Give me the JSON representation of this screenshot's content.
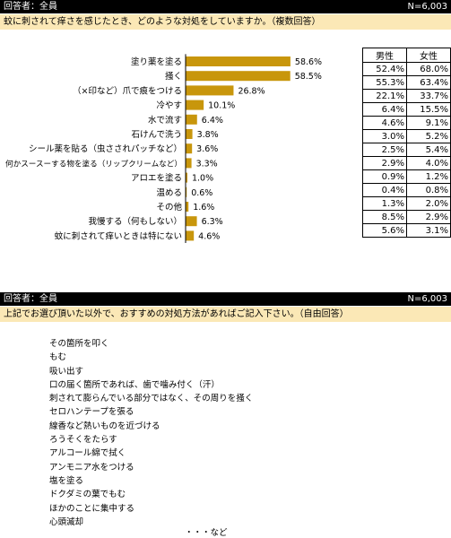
{
  "section1": {
    "respondent": "回答者：全員",
    "n": "N=6,003",
    "question": "蚊に刺されて痒さを感じたとき、どのような対処をしていますか。（複数回答）"
  },
  "table": {
    "headers": [
      "男性",
      "女性"
    ],
    "rows": [
      [
        "52.4%",
        "68.0%"
      ],
      [
        "55.3%",
        "63.4%"
      ],
      [
        "22.1%",
        "33.7%"
      ],
      [
        "6.4%",
        "15.5%"
      ],
      [
        "4.6%",
        "9.1%"
      ],
      [
        "3.0%",
        "5.2%"
      ],
      [
        "2.5%",
        "5.4%"
      ],
      [
        "2.9%",
        "4.0%"
      ],
      [
        "0.9%",
        "1.2%"
      ],
      [
        "0.4%",
        "0.8%"
      ],
      [
        "1.3%",
        "2.0%"
      ],
      [
        "8.5%",
        "2.9%"
      ],
      [
        "5.6%",
        "3.1%"
      ]
    ]
  },
  "chart_data": {
    "type": "bar",
    "orientation": "horizontal",
    "categories": [
      "塗り薬を塗る",
      "掻く",
      "（×印など）爪で痕をつける",
      "冷やす",
      "水で流す",
      "石けんで洗う",
      "シール薬を貼る（虫さされパッチなど）",
      "何かスースーする物を塗る（リップクリームなど）",
      "アロエを塗る",
      "温める",
      "その他",
      "我慢する（何もしない）",
      "蚊に刺されて痒いときは特にない"
    ],
    "values": [
      58.6,
      58.5,
      26.8,
      10.1,
      6.4,
      3.8,
      3.6,
      3.3,
      1.0,
      0.6,
      1.6,
      6.3,
      4.6
    ],
    "value_labels": [
      "58.6%",
      "58.5%",
      "26.8%",
      "10.1%",
      "6.4%",
      "3.8%",
      "3.6%",
      "3.3%",
      "1.0%",
      "0.6%",
      "1.6%",
      "6.3%",
      "4.6%"
    ],
    "bar_color": "#c8960c",
    "xlim": [
      0,
      100
    ]
  },
  "section2": {
    "respondent": "回答者：全員",
    "n": "N=6,003",
    "question": "上記でお選び頂いた以外で、おすすめの対処方法があればご記入下さい。（自由回答）",
    "answers": [
      "その箇所を叩く",
      "もむ",
      "吸い出す",
      "口の届く箇所であれば、歯で噛み付く（汗）",
      "刺されて膨らんでいる部分ではなく、その周りを掻く",
      "セロハンテープを張る",
      "線香など熱いものを近づける",
      "ろうそくをたらす",
      "アルコール綿で拭く",
      "アンモニア水をつける",
      "塩を塗る",
      "ドクダミの葉でもむ",
      "ほかのことに集中する",
      "心頭滅却"
    ],
    "etc": "・・・など"
  }
}
